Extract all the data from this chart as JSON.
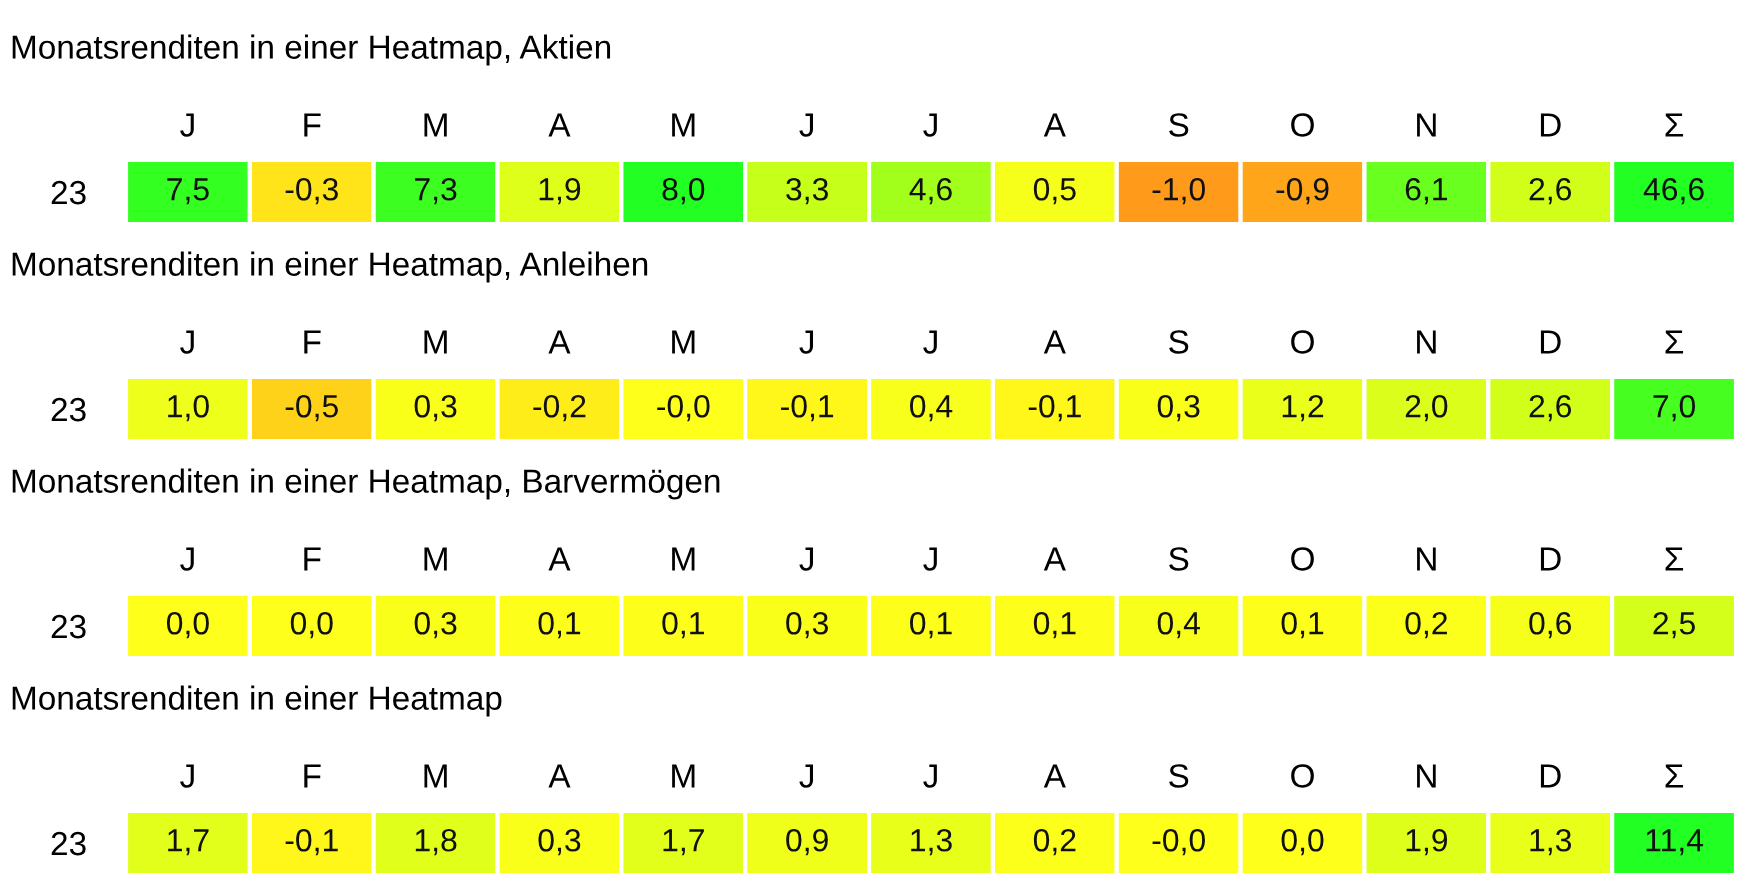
{
  "chart_data": [
    {
      "type": "heatmap",
      "title": "Monatsrenditen in einer Heatmap, Aktien",
      "categories": [
        "J",
        "F",
        "M",
        "A",
        "M",
        "J",
        "J",
        "A",
        "S",
        "O",
        "N",
        "D",
        "Σ"
      ],
      "y_categories": [
        "23"
      ],
      "cells": [
        [
          7.5,
          -0.3,
          7.3,
          1.9,
          8.0,
          3.3,
          4.6,
          0.5,
          -1.0,
          -0.9,
          6.1,
          2.6,
          46.6
        ]
      ],
      "cell_labels": [
        [
          "7,5",
          "-0,3",
          "7,3",
          "1,9",
          "8,0",
          "3,3",
          "4,6",
          "0,5",
          "-1,0",
          "-0,9",
          "6,1",
          "2,6",
          "46,6"
        ]
      ]
    },
    {
      "type": "heatmap",
      "title": "Monatsrenditen in einer Heatmap, Anleihen",
      "categories": [
        "J",
        "F",
        "M",
        "A",
        "M",
        "J",
        "J",
        "A",
        "S",
        "O",
        "N",
        "D",
        "Σ"
      ],
      "y_categories": [
        "23"
      ],
      "cells": [
        [
          1.0,
          -0.5,
          0.3,
          -0.2,
          -0.0,
          -0.1,
          0.4,
          -0.1,
          0.3,
          1.2,
          2.0,
          2.6,
          7.0
        ]
      ],
      "cell_labels": [
        [
          "1,0",
          "-0,5",
          "0,3",
          "-0,2",
          "-0,0",
          "-0,1",
          "0,4",
          "-0,1",
          "0,3",
          "1,2",
          "2,0",
          "2,6",
          "7,0"
        ]
      ]
    },
    {
      "type": "heatmap",
      "title": "Monatsrenditen in einer Heatmap, Barvermögen",
      "categories": [
        "J",
        "F",
        "M",
        "A",
        "M",
        "J",
        "J",
        "A",
        "S",
        "O",
        "N",
        "D",
        "Σ"
      ],
      "y_categories": [
        "23"
      ],
      "cells": [
        [
          0.0,
          0.0,
          0.3,
          0.1,
          0.1,
          0.3,
          0.1,
          0.1,
          0.4,
          0.1,
          0.2,
          0.6,
          2.5
        ]
      ],
      "cell_labels": [
        [
          "0,0",
          "0,0",
          "0,3",
          "0,1",
          "0,1",
          "0,3",
          "0,1",
          "0,1",
          "0,4",
          "0,1",
          "0,2",
          "0,6",
          "2,5"
        ]
      ]
    },
    {
      "type": "heatmap",
      "title": "Monatsrenditen in einer Heatmap",
      "categories": [
        "J",
        "F",
        "M",
        "A",
        "M",
        "J",
        "J",
        "A",
        "S",
        "O",
        "N",
        "D",
        "Σ"
      ],
      "y_categories": [
        "23"
      ],
      "cells": [
        [
          1.7,
          -0.1,
          1.8,
          0.3,
          1.7,
          0.9,
          1.3,
          0.2,
          -0.0,
          0.0,
          1.9,
          1.3,
          11.4
        ]
      ],
      "cell_labels": [
        [
          "1,7",
          "-0,1",
          "1,8",
          "0,3",
          "1,7",
          "0,9",
          "1,3",
          "0,2",
          "-0,0",
          "0,0",
          "1,9",
          "1,3",
          "11,4"
        ]
      ]
    }
  ]
}
